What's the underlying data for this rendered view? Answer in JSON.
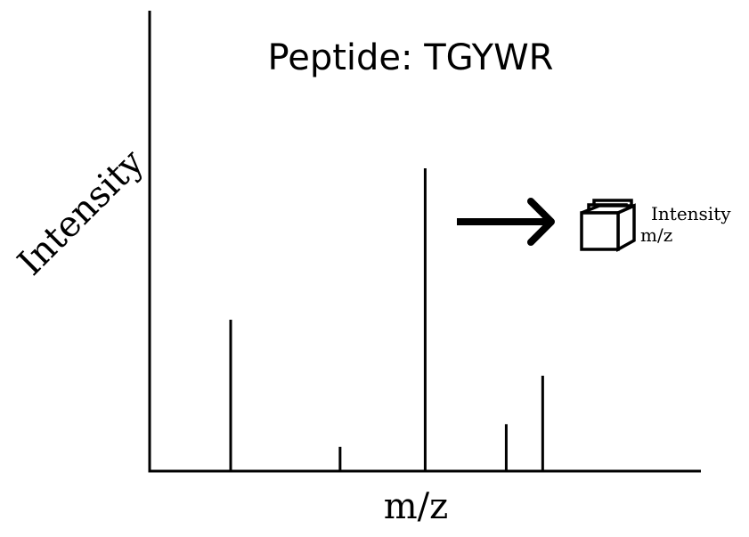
{
  "chart_data": {
    "type": "bar",
    "title": "Peptide: TGYWR",
    "xlabel": "m/z",
    "ylabel": "Intensity",
    "x": [
      1,
      2.35,
      3.4,
      4.4,
      4.85
    ],
    "values": [
      0.5,
      0.08,
      1.0,
      0.155,
      0.315
    ],
    "xlim": [
      0,
      6.8
    ],
    "ylim": [
      0,
      1.52
    ],
    "grid": false,
    "legend": "none"
  },
  "inset": {
    "label_top": "Intensity",
    "label_bottom": "m/z",
    "arrow_icon": "right-arrow-icon",
    "cube_icon": "cube-stack-icon"
  },
  "colors": {
    "ink": "#000000",
    "background": "#ffffff"
  }
}
